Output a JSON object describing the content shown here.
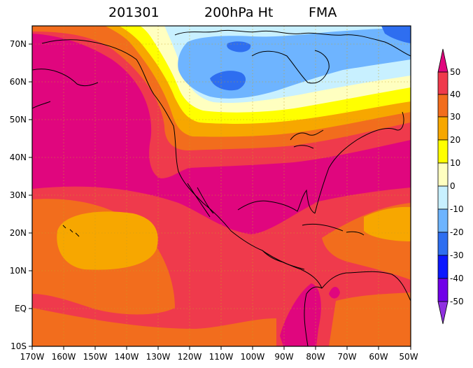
{
  "title": {
    "date": "201301",
    "variable": "200hPa Ht",
    "season": "FMA"
  },
  "map": {
    "lon_range": [
      -170,
      -50
    ],
    "lat_range": [
      -10,
      75
    ],
    "lon_tick_labels": [
      "170W",
      "160W",
      "150W",
      "140W",
      "130W",
      "120W",
      "110W",
      "100W",
      "90W",
      "80W",
      "70W",
      "60W",
      "50W"
    ],
    "lat_tick_labels": [
      "10S",
      "EQ",
      "10N",
      "20N",
      "30N",
      "40N",
      "50N",
      "60N",
      "70N"
    ],
    "grid": "dotted"
  },
  "colorbar": {
    "levels": [
      "50",
      "40",
      "30",
      "20",
      "10",
      "0",
      "-10",
      "-20",
      "-30",
      "-40",
      "-50"
    ],
    "colors": [
      "#e0067e",
      "#ef3a4c",
      "#f26d1d",
      "#f7a700",
      "#ffff00",
      "#ffffc0",
      "#c8f0ff",
      "#6eb4ff",
      "#2e6ef0",
      "#0c18ff",
      "#7000e8",
      "#e0067e",
      "#9030e0"
    ]
  },
  "palette": {
    "magenta": "#e0067e",
    "red": "#ef3a4c",
    "orange": "#f26d1d",
    "gold": "#f7a700",
    "yellow": "#ffff00",
    "cream": "#ffffc0",
    "lightblue": "#c8f0ff",
    "skyblue": "#6eb4ff",
    "blue": "#2e6ef0",
    "coast": "#000000"
  }
}
